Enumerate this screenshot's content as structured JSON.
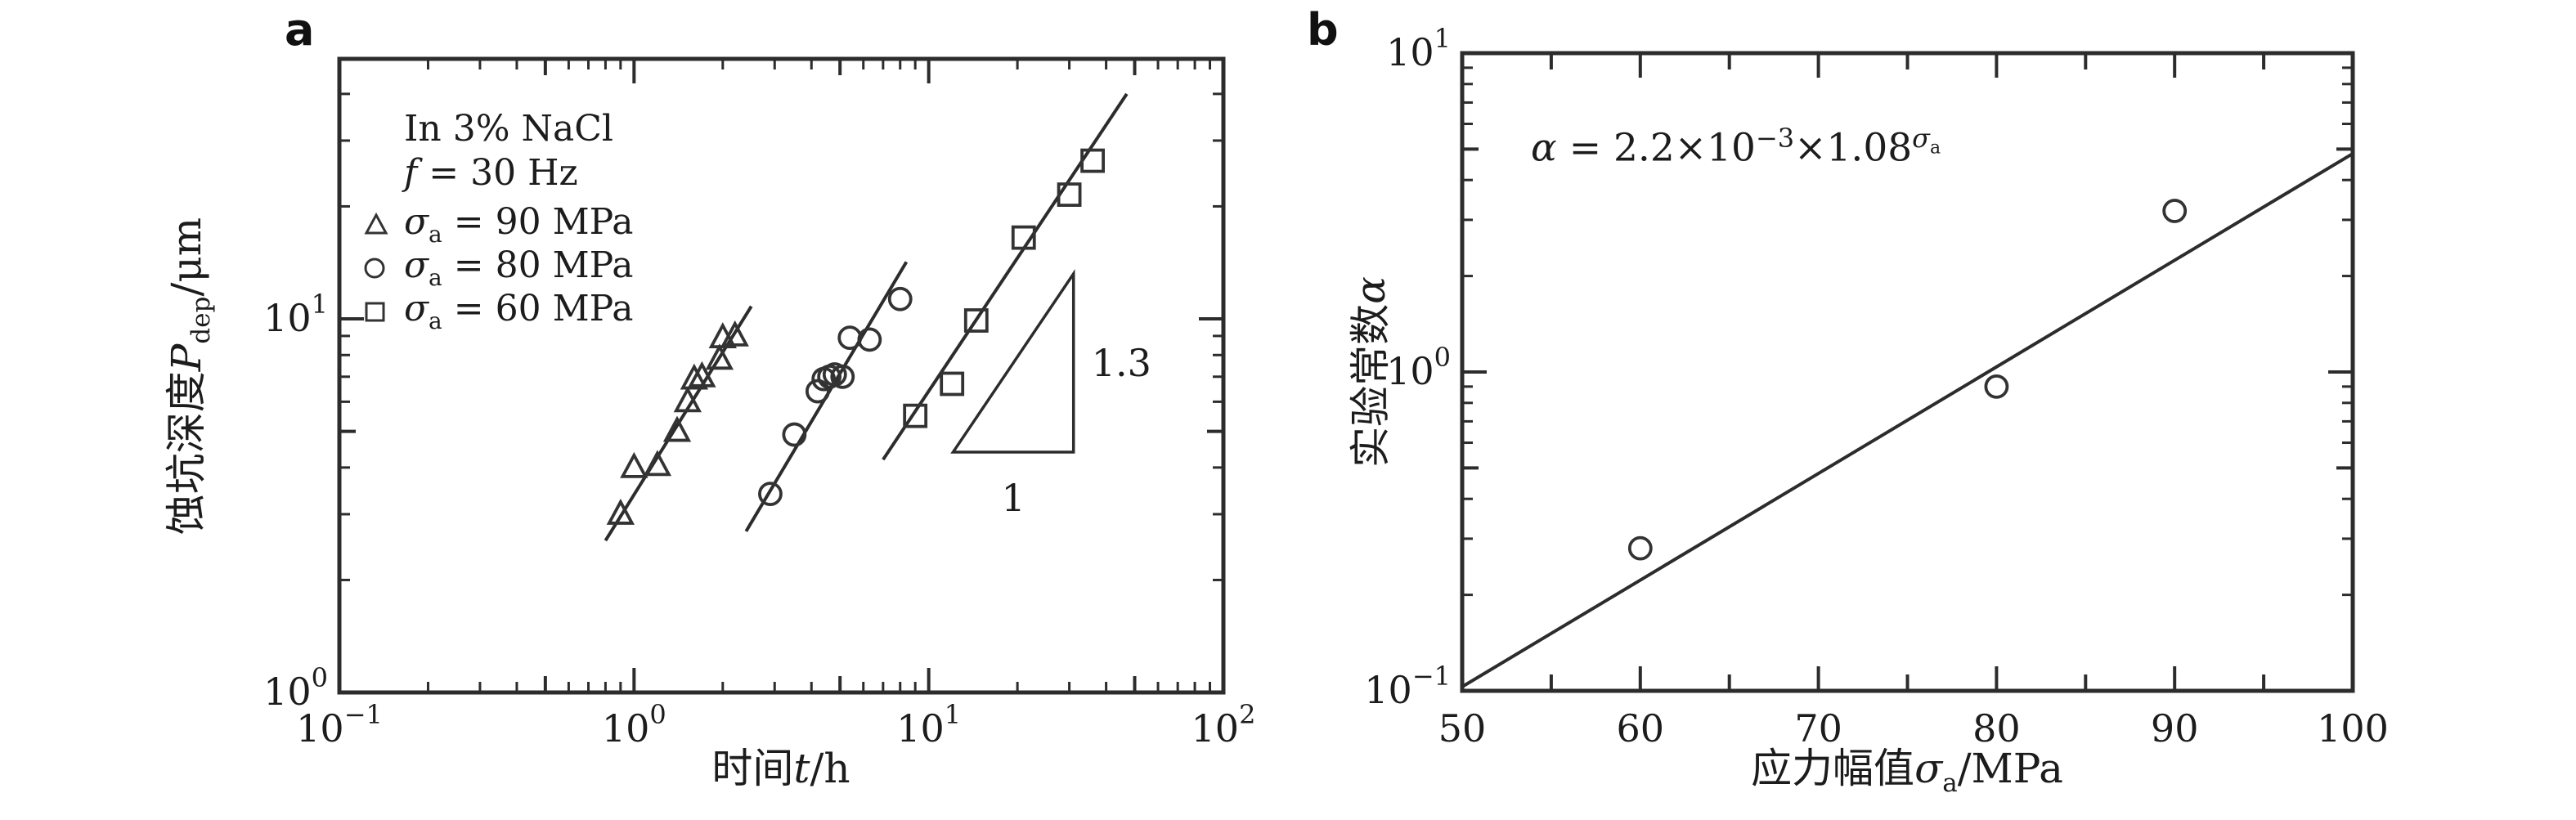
{
  "figure": {
    "panel_a_label": "a",
    "panel_b_label": "b"
  },
  "panel_a": {
    "legend": {
      "line1": "In 3% NaCl",
      "line2_var": "f",
      "line2_rest": " = 30 Hz",
      "rows": [
        {
          "marker": "triangle",
          "sigma": "σ",
          "sub": "a",
          "rest": " = 90 MPa"
        },
        {
          "marker": "circle",
          "sigma": "σ",
          "sub": "a",
          "rest": " = 80 MPa"
        },
        {
          "marker": "square",
          "sigma": "σ",
          "sub": "a",
          "rest": " = 60 MPa"
        }
      ]
    },
    "xlabel": {
      "cjk": "时间",
      "var": "t",
      "unit": "/h"
    },
    "ylabel": {
      "cjk": "蚀坑深度",
      "var": "P",
      "sub": "dep",
      "unit": "/μm"
    }
  },
  "panel_b": {
    "equation": {
      "alpha": "α",
      "eq": " = 2.2×10",
      "exp1": "−3",
      "times": "×1.08",
      "sigma": "σ",
      "sub": "a"
    },
    "xlabel": {
      "cjk": "应力幅值",
      "var": "σ",
      "sub": "a",
      "unit": "/MPa"
    },
    "ylabel": {
      "cjk": "实验常数",
      "var": "α"
    }
  },
  "chart_data": [
    {
      "id": "a",
      "type": "scatter",
      "x_scale": "log",
      "y_scale": "log",
      "xlim": [
        0.1,
        100
      ],
      "ylim": [
        1,
        49.5
      ],
      "x_major_ticks": [
        0.1,
        1,
        10,
        100
      ],
      "y_major_ticks": [
        1,
        10
      ],
      "xlabel": "时间t/h",
      "ylabel": "蚀坑深度Pdep/μm",
      "legend_header": [
        "In 3% NaCl",
        "f = 30 Hz"
      ],
      "series": [
        {
          "name": "σa = 90 MPa",
          "marker": "triangle",
          "points": [
            [
              0.9,
              3.0
            ],
            [
              1.0,
              4.0
            ],
            [
              1.2,
              4.05
            ],
            [
              1.4,
              5.0
            ],
            [
              1.52,
              6.0
            ],
            [
              1.6,
              6.9
            ],
            [
              1.7,
              7.0
            ],
            [
              1.95,
              7.8
            ],
            [
              2.0,
              8.9
            ],
            [
              2.2,
              9.0
            ]
          ],
          "fit_line": [
            [
              0.8,
              2.55
            ],
            [
              2.5,
              10.8
            ]
          ],
          "fit_slope": 1.3
        },
        {
          "name": "σa = 80 MPa",
          "marker": "circle",
          "points": [
            [
              2.9,
              3.4
            ],
            [
              3.5,
              4.9
            ],
            [
              4.2,
              6.4
            ],
            [
              4.4,
              6.9
            ],
            [
              4.6,
              7.0
            ],
            [
              4.8,
              7.1
            ],
            [
              5.1,
              7.0
            ],
            [
              5.4,
              8.9
            ],
            [
              6.3,
              8.8
            ],
            [
              8.0,
              11.3
            ]
          ],
          "fit_line": [
            [
              2.4,
              2.7
            ],
            [
              8.4,
              14.2
            ]
          ],
          "fit_slope": 1.3
        },
        {
          "name": "σa = 60 MPa",
          "marker": "square",
          "points": [
            [
              9,
              5.5
            ],
            [
              12,
              6.7
            ],
            [
              14.5,
              9.9
            ],
            [
              21,
              16.5
            ],
            [
              30,
              21.5
            ],
            [
              36,
              26.5
            ]
          ],
          "fit_line": [
            [
              7,
              4.2
            ],
            [
              47,
              40
            ]
          ],
          "fit_slope": 1.3
        }
      ],
      "slope_indicator": {
        "x": [
          12.1,
          31
        ],
        "y": [
          4.4,
          13.2
        ],
        "rise_label": "1.3",
        "run_label": "1"
      }
    },
    {
      "id": "b",
      "type": "scatter",
      "x_scale": "linear",
      "y_scale": "log",
      "xlim": [
        50,
        100
      ],
      "ylim": [
        0.1,
        10
      ],
      "x_major_ticks": [
        50,
        60,
        70,
        80,
        90,
        100
      ],
      "x_minor_ticks": [
        55,
        65,
        75,
        85,
        95
      ],
      "y_major_ticks": [
        0.1,
        1,
        10
      ],
      "xlabel": "应力幅值σa/MPa",
      "ylabel": "实验常数α",
      "equation": "α = 2.2×10−3×1.08σa",
      "series": [
        {
          "name": "实验常数α",
          "marker": "circle",
          "points": [
            [
              60,
              0.28
            ],
            [
              80,
              0.9
            ],
            [
              90,
              3.2
            ]
          ],
          "fit_line": [
            [
              50,
              0.103
            ],
            [
              100,
              4.84
            ]
          ]
        }
      ]
    }
  ]
}
